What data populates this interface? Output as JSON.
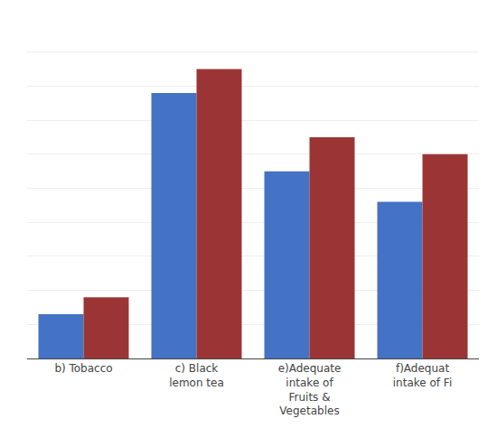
{
  "chart_data": {
    "type": "bar",
    "categories": [
      "b) Tobacco",
      "c) Black\nlemon tea",
      "e)Adequate\nintake of\nFruits &\nVegetables",
      "f)Adequat\nintake of Fi"
    ],
    "series": [
      {
        "color": "#4472C4",
        "values": [
          13,
          78,
          55,
          46
        ]
      },
      {
        "color": "#9B3535",
        "values": [
          18,
          85,
          65,
          60
        ]
      }
    ],
    "ylim": [
      0,
      100
    ],
    "yticks": [
      0,
      10,
      20,
      30,
      40,
      50,
      60,
      70,
      80,
      90,
      100
    ],
    "grid": true,
    "tick_labels": "x"
  }
}
